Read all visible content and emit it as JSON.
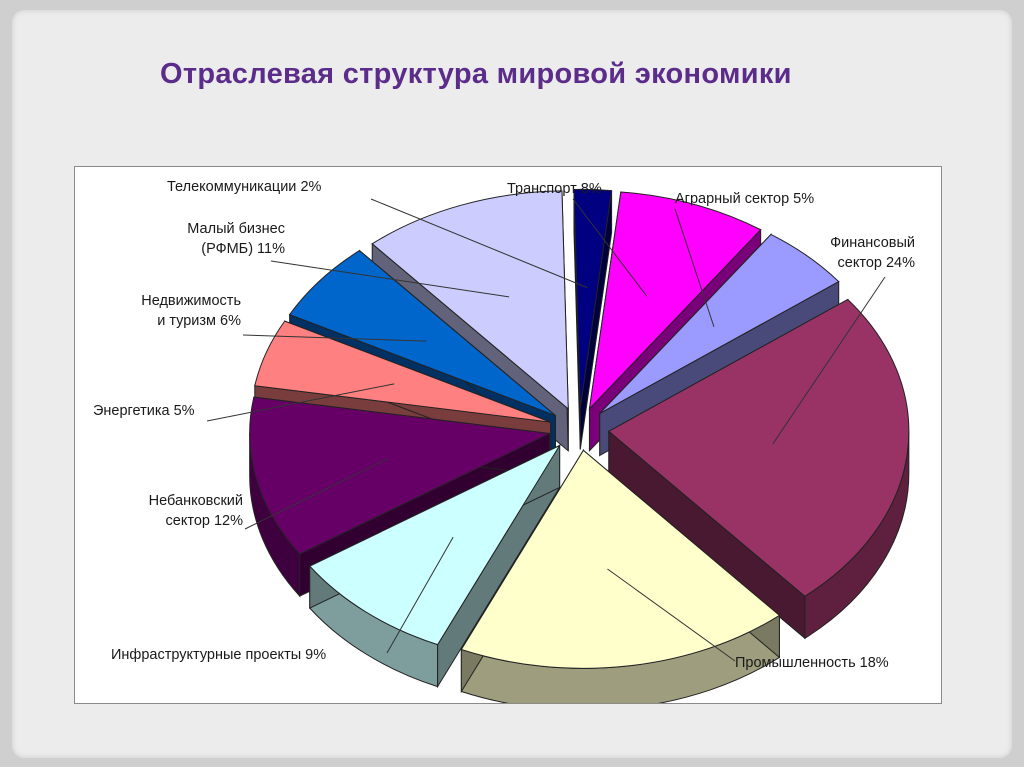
{
  "slide": {
    "title": "Отраслевая структура мировой экономики"
  },
  "chart_data": {
    "type": "pie",
    "title": "",
    "slices": [
      {
        "label": "Транспорт 8%",
        "value": 8,
        "color": "#ff00ff"
      },
      {
        "label": "Аграрный сектор 5%",
        "value": 5,
        "color": "#9a9aff"
      },
      {
        "label": "Финансовый сектор 24%",
        "value": 24,
        "color": "#993366"
      },
      {
        "label": "Промышленность 18%",
        "value": 18,
        "color": "#ffffcc"
      },
      {
        "label": "Инфраструктурные проекты 9%",
        "value": 9,
        "color": "#ccffff"
      },
      {
        "label": "Небанковский сектор 12%",
        "value": 12,
        "color": "#660066"
      },
      {
        "label": "Энергетика 5%",
        "value": 5,
        "color": "#ff8080"
      },
      {
        "label": "Недвижимость и туризм 6%",
        "value": 6,
        "color": "#0066cc"
      },
      {
        "label": "Малый бизнес (РФМБ) 11%",
        "value": 11,
        "color": "#ccccff"
      },
      {
        "label": "Телекоммуникации 2%",
        "value": 2,
        "color": "#000080"
      }
    ],
    "style": "3d-exploded",
    "legend": "none"
  }
}
